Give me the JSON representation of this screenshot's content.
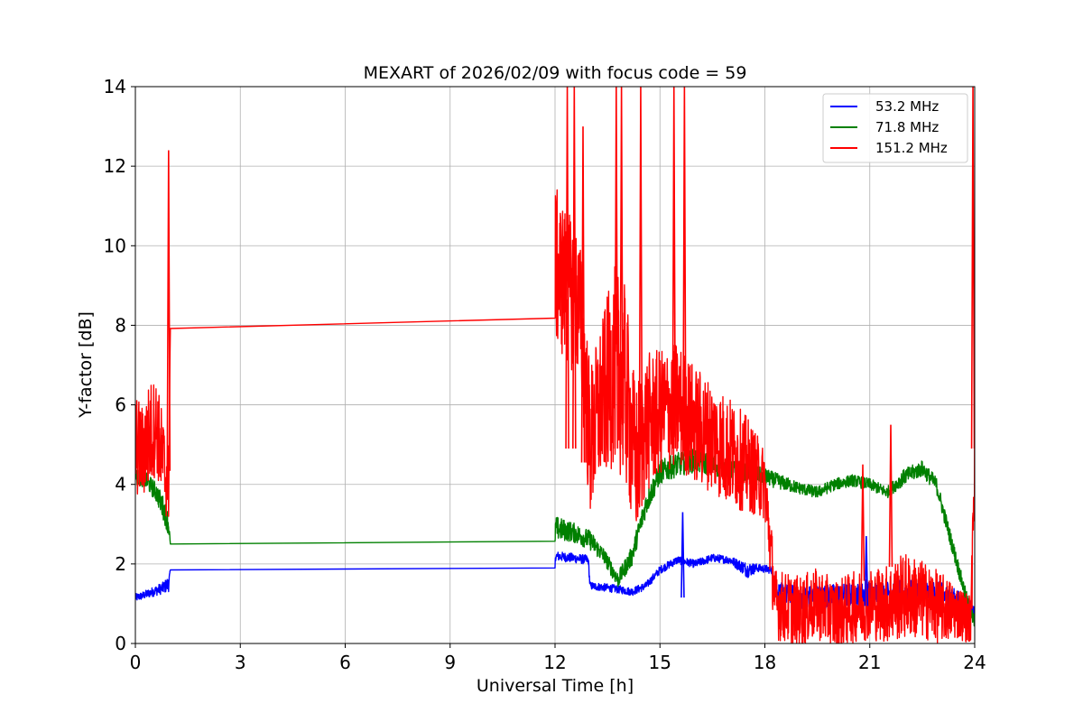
{
  "chart_data": {
    "type": "line",
    "title": "MEXART of 2026/02/09 with focus code = 59",
    "xlabel": "Universal Time [h]",
    "ylabel": "Y-factor [dB]",
    "xlim": [
      0,
      24
    ],
    "ylim": [
      0,
      14
    ],
    "xticks": [
      0,
      3,
      6,
      9,
      12,
      15,
      18,
      21,
      24
    ],
    "yticks": [
      0,
      2,
      4,
      6,
      8,
      10,
      12,
      14
    ],
    "grid": true,
    "legend_position": "top-right",
    "series": [
      {
        "name": "53.2 MHz",
        "color": "#0000ff",
        "x": [
          0.0,
          0.2,
          0.5,
          0.8,
          0.95,
          1.0,
          12.0,
          12.01,
          12.5,
          12.95,
          13.0,
          13.5,
          13.9,
          14.2,
          14.6,
          15.0,
          15.5,
          16.0,
          16.5,
          17.0,
          17.3,
          17.5,
          17.8,
          18.2,
          18.3,
          19.0,
          20.0,
          21.0,
          22.0,
          23.0,
          23.5,
          23.9,
          24.0
        ],
        "y": [
          1.15,
          1.2,
          1.3,
          1.4,
          1.5,
          1.85,
          1.9,
          2.2,
          2.15,
          2.1,
          1.45,
          1.4,
          1.35,
          1.3,
          1.45,
          1.85,
          2.1,
          2.0,
          2.15,
          2.1,
          1.95,
          1.85,
          1.9,
          1.85,
          1.3,
          1.15,
          1.2,
          1.25,
          1.3,
          1.25,
          1.1,
          0.9,
          0.8
        ],
        "noise": [
          0.1,
          0.1,
          0.12,
          0.15,
          0.2,
          0,
          0,
          0.12,
          0.12,
          0.12,
          0.1,
          0.1,
          0.1,
          0.1,
          0.1,
          0.1,
          0.1,
          0.1,
          0.1,
          0.1,
          0.15,
          0.2,
          0.1,
          0.1,
          0.25,
          0.3,
          0.3,
          0.3,
          0.3,
          0.3,
          0.25,
          0.2,
          0.1
        ]
      },
      {
        "name": "71.8 MHz",
        "color": "#008000",
        "x": [
          0.0,
          0.3,
          0.6,
          0.8,
          0.95,
          1.0,
          12.0,
          12.01,
          12.5,
          13.0,
          13.4,
          13.8,
          14.2,
          14.6,
          15.0,
          15.5,
          16.0,
          16.5,
          17.0,
          17.5,
          18.0,
          18.3,
          19.0,
          19.5,
          20.0,
          20.5,
          21.0,
          21.5,
          22.0,
          22.5,
          22.9,
          23.2,
          23.5,
          23.8,
          24.0
        ],
        "y": [
          4.2,
          4.1,
          3.8,
          3.4,
          3.0,
          2.5,
          2.57,
          2.9,
          2.8,
          2.6,
          2.2,
          1.6,
          2.2,
          3.5,
          4.3,
          4.5,
          4.6,
          4.5,
          4.4,
          4.3,
          4.2,
          4.1,
          3.9,
          3.8,
          4.0,
          4.1,
          4.0,
          3.8,
          4.2,
          4.4,
          4.0,
          3.0,
          2.0,
          1.0,
          0.5
        ],
        "noise": [
          0.2,
          0.2,
          0.25,
          0.3,
          0.3,
          0,
          0,
          0.3,
          0.25,
          0.25,
          0.2,
          0.2,
          0.25,
          0.3,
          0.3,
          0.3,
          0.3,
          0.3,
          0.25,
          0.25,
          0.2,
          0.2,
          0.15,
          0.15,
          0.15,
          0.15,
          0.15,
          0.15,
          0.2,
          0.2,
          0.2,
          0.2,
          0.2,
          0.2,
          0.2
        ]
      },
      {
        "name": "151.2 MHz",
        "color": "#ff0000",
        "x": [
          0.0,
          0.2,
          0.4,
          0.6,
          0.8,
          0.95,
          1.0,
          12.0,
          12.01,
          12.3,
          12.7,
          13.0,
          13.3,
          13.7,
          14.0,
          14.3,
          14.6,
          15.0,
          15.5,
          16.0,
          16.5,
          17.0,
          17.5,
          18.0,
          18.3,
          18.6,
          19.0,
          19.5,
          20.0,
          20.5,
          21.0,
          21.5,
          22.0,
          22.5,
          23.0,
          23.5,
          23.9,
          24.0
        ],
        "y": [
          5.0,
          4.8,
          5.2,
          5.5,
          4.5,
          4.0,
          7.92,
          8.18,
          9.5,
          9.0,
          8.5,
          5.0,
          6.0,
          7.0,
          6.5,
          4.5,
          5.5,
          5.8,
          6.0,
          5.5,
          5.2,
          4.8,
          4.5,
          4.0,
          1.0,
          0.9,
          0.8,
          1.0,
          0.7,
          0.9,
          1.0,
          1.0,
          1.2,
          1.1,
          0.9,
          0.8,
          0.6,
          7.0
        ],
        "noise": [
          1.3,
          1.2,
          1.4,
          1.2,
          1.2,
          1.0,
          0,
          0,
          2.0,
          2.0,
          1.8,
          2.0,
          2.0,
          2.5,
          2.5,
          2.0,
          1.8,
          1.6,
          1.6,
          1.5,
          1.4,
          1.4,
          1.2,
          0.9,
          0.9,
          0.9,
          0.9,
          0.9,
          0.9,
          0.9,
          0.9,
          1.0,
          1.1,
          1.0,
          0.9,
          0.7,
          0.6,
          4.0
        ]
      }
    ],
    "spikes": [
      {
        "series": 2,
        "x": 0.95,
        "y": 12.4
      },
      {
        "series": 2,
        "x": 12.35,
        "y": 14.0
      },
      {
        "series": 2,
        "x": 12.55,
        "y": 14.0
      },
      {
        "series": 2,
        "x": 12.8,
        "y": 13.0
      },
      {
        "series": 2,
        "x": 13.75,
        "y": 14.0
      },
      {
        "series": 2,
        "x": 13.9,
        "y": 14.0
      },
      {
        "series": 2,
        "x": 14.45,
        "y": 14.0
      },
      {
        "series": 2,
        "x": 15.4,
        "y": 14.0
      },
      {
        "series": 2,
        "x": 15.7,
        "y": 14.0
      },
      {
        "series": 2,
        "x": 20.8,
        "y": 4.5
      },
      {
        "series": 2,
        "x": 21.6,
        "y": 5.5
      },
      {
        "series": 2,
        "x": 23.95,
        "y": 14.0
      },
      {
        "series": 0,
        "x": 15.65,
        "y": 3.3
      },
      {
        "series": 0,
        "x": 20.9,
        "y": 2.7
      }
    ]
  }
}
